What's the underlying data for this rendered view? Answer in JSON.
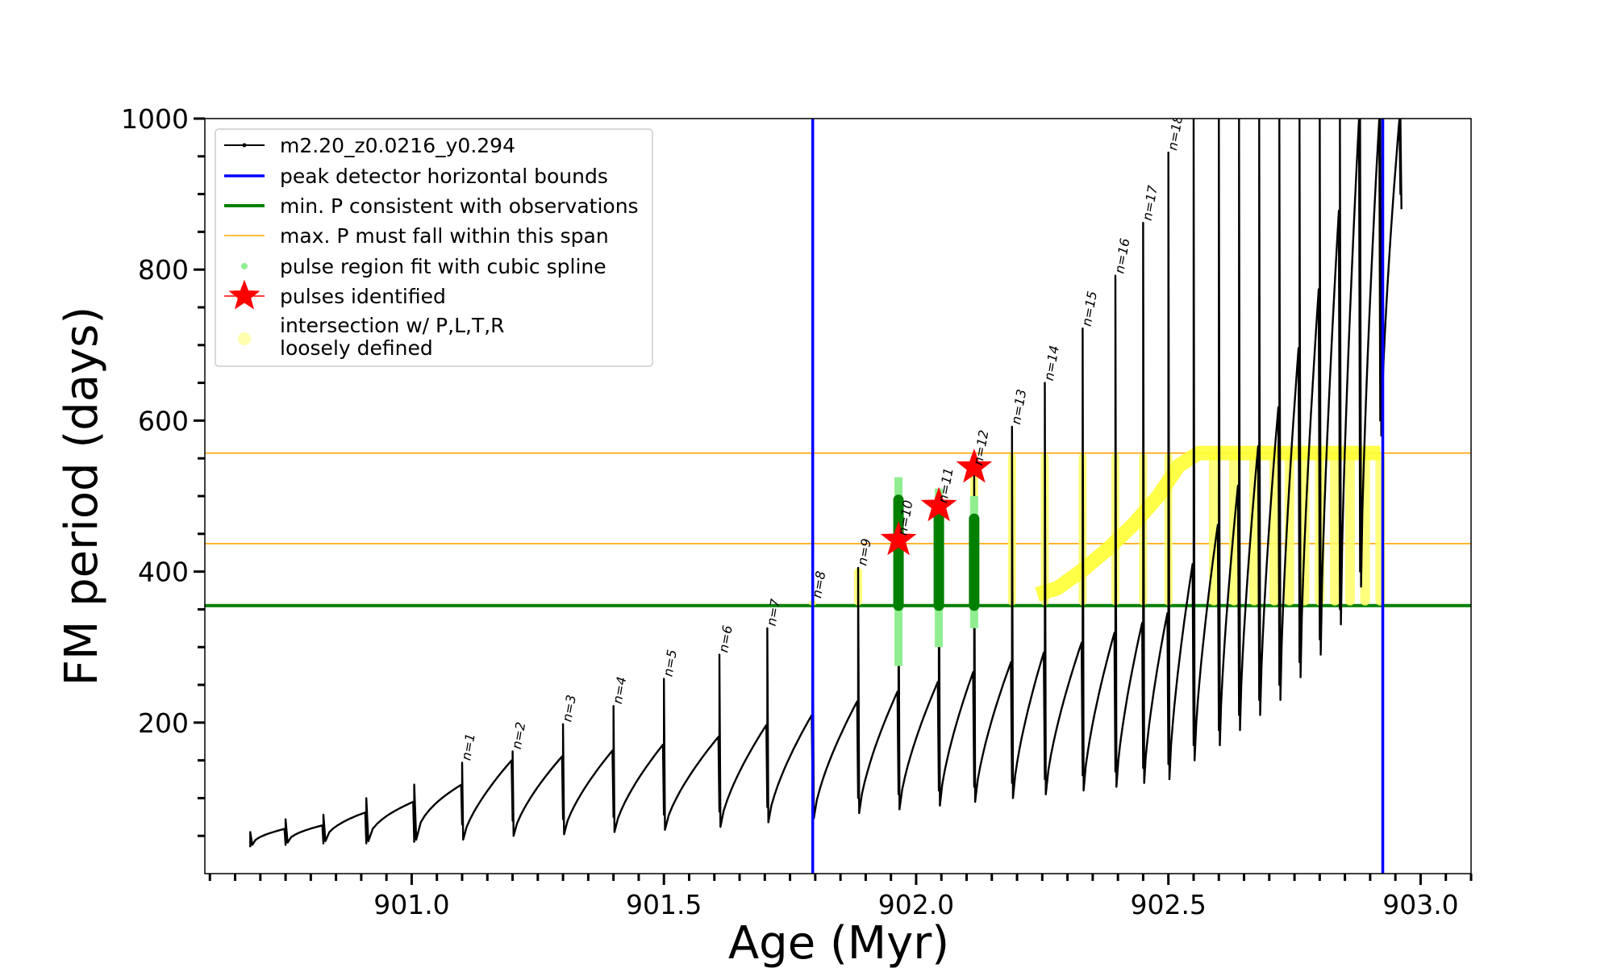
{
  "chart_data": {
    "type": "line",
    "title": "",
    "xlabel": "Age (Myr)",
    "ylabel": "FM period (days)",
    "xlim": [
      900.59,
      903.1
    ],
    "ylim": [
      0,
      1000
    ],
    "xticks": [
      {
        "value": 901.0,
        "label": "901.0"
      },
      {
        "value": 901.5,
        "label": "901.5"
      },
      {
        "value": 902.0,
        "label": "902.0"
      },
      {
        "value": 902.5,
        "label": "902.5"
      },
      {
        "value": 903.0,
        "label": "903.0"
      }
    ],
    "yticks": [
      {
        "value": 200,
        "label": "200"
      },
      {
        "value": 400,
        "label": "400"
      },
      {
        "value": 600,
        "label": "600"
      },
      {
        "value": 800,
        "label": "800"
      },
      {
        "value": 1000,
        "label": "1000"
      }
    ],
    "legend": {
      "position": "top-left",
      "entries": [
        {
          "label": "m2.20_z0.0216_y0.294",
          "color": "#000000",
          "marker": "line-dot"
        },
        {
          "label": "peak detector horizontal bounds",
          "color": "#0000ff",
          "marker": "line"
        },
        {
          "label": "min. P consistent with observations",
          "color": "#008000",
          "marker": "line"
        },
        {
          "label": "max. P must fall within this span",
          "color": "#ffa500",
          "marker": "thin-line"
        },
        {
          "label": "pulse region fit with cubic spline",
          "color": "#90ee90",
          "marker": "dot"
        },
        {
          "label": "pulses identified",
          "color": "#ff0000",
          "marker": "star"
        },
        {
          "label": "intersection w/ P,L,T,R",
          "label2": "loosely defined",
          "color": "#ffff99",
          "marker": "circle"
        }
      ]
    },
    "vertical_bounds": [
      901.795,
      902.925
    ],
    "min_period": 355,
    "max_period_span": [
      437,
      557
    ],
    "pulses": [
      {
        "n": "n=1",
        "age": 901.1,
        "start": 45,
        "peak": 147
      },
      {
        "n": "n=2",
        "age": 901.2,
        "start": 50,
        "peak": 162
      },
      {
        "n": "n=3",
        "age": 901.3,
        "start": 52,
        "peak": 198
      },
      {
        "n": "n=4",
        "age": 901.4,
        "start": 55,
        "peak": 222
      },
      {
        "n": "n=5",
        "age": 901.5,
        "start": 58,
        "peak": 258
      },
      {
        "n": "n=6",
        "age": 901.61,
        "start": 62,
        "peak": 290
      },
      {
        "n": "n=7",
        "age": 901.705,
        "start": 68,
        "peak": 325
      },
      {
        "n": "n=8",
        "age": 901.795,
        "start": 73,
        "peak": 362
      },
      {
        "n": "n=9",
        "age": 901.885,
        "start": 80,
        "peak": 405
      },
      {
        "n": "n=10",
        "age": 901.965,
        "start": 85,
        "peak": 445
      },
      {
        "n": "n=11",
        "age": 902.045,
        "start": 90,
        "peak": 488
      },
      {
        "n": "n=12",
        "age": 902.115,
        "start": 95,
        "peak": 538
      },
      {
        "n": "n=13",
        "age": 902.19,
        "start": 100,
        "peak": 592
      },
      {
        "n": "n=14",
        "age": 902.255,
        "start": 105,
        "peak": 650
      },
      {
        "n": "n=15",
        "age": 902.33,
        "start": 110,
        "peak": 722
      },
      {
        "n": "n=16",
        "age": 902.395,
        "start": 115,
        "peak": 792
      },
      {
        "n": "n=17",
        "age": 902.45,
        "start": 120,
        "peak": 862
      },
      {
        "n": "n=18",
        "age": 902.5,
        "start": 125,
        "peak": 955
      }
    ],
    "stars": [
      {
        "age": 901.965,
        "period": 442
      },
      {
        "age": 902.045,
        "period": 487
      },
      {
        "age": 902.115,
        "period": 538
      }
    ]
  }
}
